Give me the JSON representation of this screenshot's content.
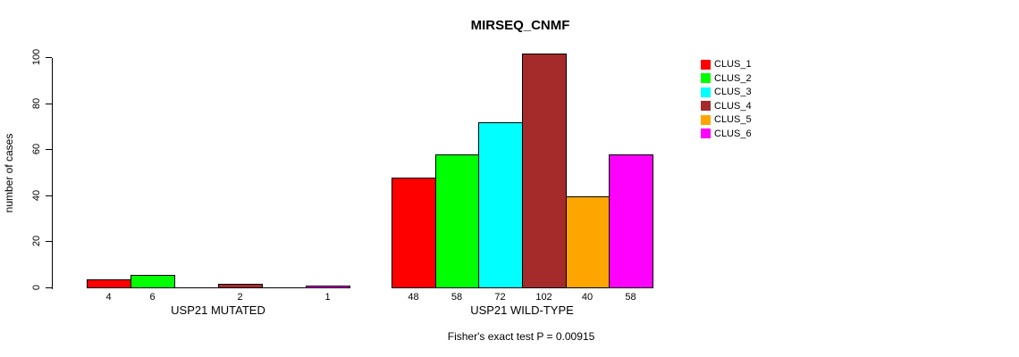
{
  "chart_data": {
    "type": "bar",
    "title": "MIRSEQ_CNMF",
    "ylabel": "number of cases",
    "xlabel": "",
    "categories": [
      "USP21 MUTATED",
      "USP21 WILD-TYPE"
    ],
    "series": [
      {
        "name": "CLUS_1",
        "color": "#FF0000",
        "values": [
          4,
          48
        ]
      },
      {
        "name": "CLUS_2",
        "color": "#00FF00",
        "values": [
          6,
          58
        ]
      },
      {
        "name": "CLUS_3",
        "color": "#00FFFF",
        "values": [
          0,
          72
        ]
      },
      {
        "name": "CLUS_4",
        "color": "#A52A2A",
        "values": [
          2,
          102
        ]
      },
      {
        "name": "CLUS_5",
        "color": "#FFA500",
        "values": [
          0,
          40
        ]
      },
      {
        "name": "CLUS_6",
        "color": "#FF00FF",
        "values": [
          1,
          58
        ]
      }
    ],
    "ylim": [
      0,
      100
    ],
    "yticks": [
      0,
      20,
      40,
      60,
      80,
      100
    ],
    "grid": false,
    "legend_position": "right",
    "bar_value_labels": "shown below bars, zeros omitted",
    "annotation": "Fisher's exact test P = 0.00915"
  }
}
